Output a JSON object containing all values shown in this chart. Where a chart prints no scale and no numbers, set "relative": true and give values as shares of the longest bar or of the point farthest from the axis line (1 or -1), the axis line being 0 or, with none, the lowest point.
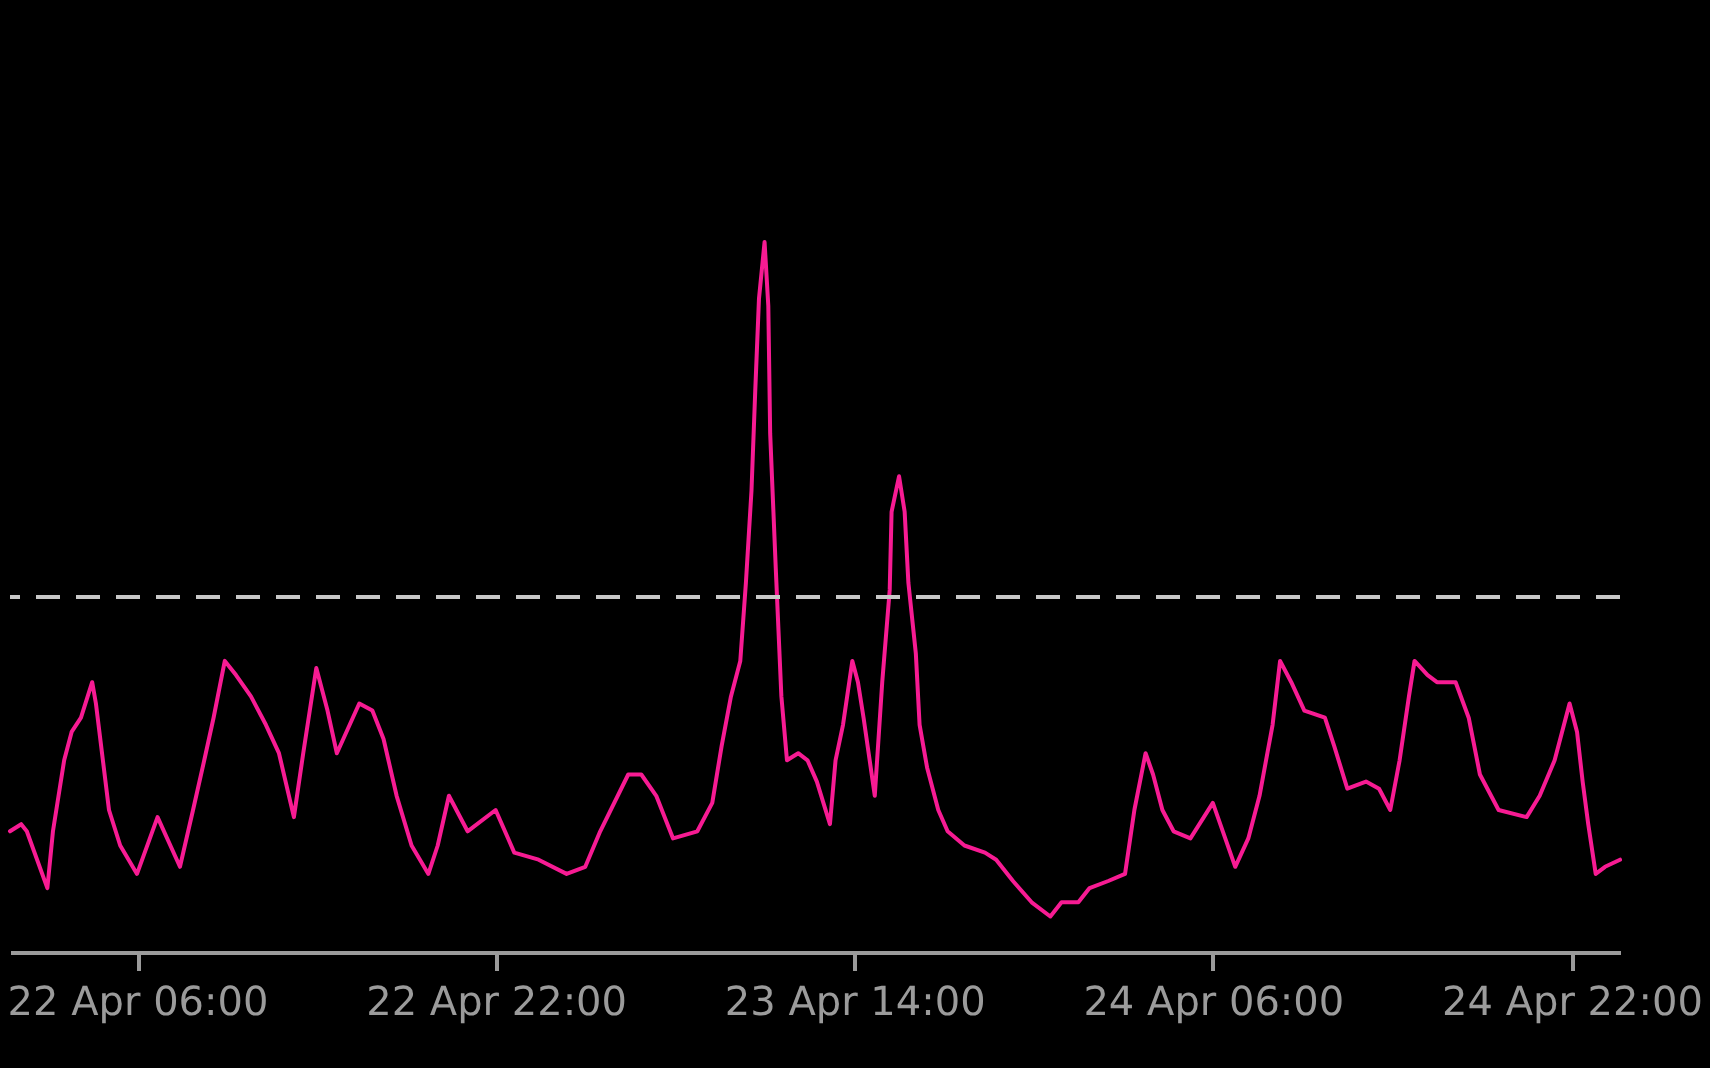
{
  "chart_data": {
    "type": "line",
    "relative": true,
    "x": [
      "--04-22T00:20",
      "--04-22T00:50",
      "--04-22T01:05",
      "--04-22T02:00",
      "--04-22T02:15",
      "--04-22T02:45",
      "--04-22T03:05",
      "--04-22T03:30",
      "--04-22T04:00",
      "--04-22T04:10",
      "--04-22T04:45",
      "--04-22T05:15",
      "--04-22T06:00",
      "--04-22T06:55",
      "--04-22T07:55",
      "--04-22T08:30",
      "--04-22T09:00",
      "--04-22T09:25",
      "--04-22T09:55",
      "--04-22T10:25",
      "--04-22T11:05",
      "--04-22T11:45",
      "--04-22T12:20",
      "--04-22T13:00",
      "--04-22T13:25",
      "--04-22T14:00",
      "--04-22T14:30",
      "--04-22T14:55",
      "--04-22T15:55",
      "--04-22T16:30",
      "--04-22T17:00",
      "--04-22T17:35",
      "--04-22T18:15",
      "--04-22T19:00",
      "--04-22T19:25",
      "--04-22T19:55",
      "--04-22T20:45",
      "--04-22T22:00",
      "--04-22T22:50",
      "--04-22T23:55",
      "--04-23T01:10",
      "--04-23T02:00",
      "--04-23T02:40",
      "--04-23T03:55",
      "--04-23T04:30",
      "--04-23T05:10",
      "--04-23T05:55",
      "--04-23T07:00",
      "--04-23T07:40",
      "--04-23T08:05",
      "--04-23T08:30",
      "--04-23T08:55",
      "--04-23T09:10",
      "--04-23T09:25",
      "--04-23T09:35",
      "--04-23T09:45",
      "--04-23T10:00",
      "--04-23T10:10",
      "--04-23T10:15",
      "--04-23T10:30",
      "--04-23T10:45",
      "--04-23T11:00",
      "--04-23T11:30",
      "--04-23T11:55",
      "--04-23T12:20",
      "--04-23T12:55",
      "--04-23T13:10",
      "--04-23T13:30",
      "--04-23T13:55",
      "--04-23T14:10",
      "--04-23T14:25",
      "--04-23T14:55",
      "--04-23T15:15",
      "--04-23T15:35",
      "--04-23T15:40",
      "--04-23T16:00",
      "--04-23T16:15",
      "--04-23T16:25",
      "--04-23T16:45",
      "--04-23T16:55",
      "--04-23T17:15",
      "--04-23T17:45",
      "--04-23T18:10",
      "--04-23T18:55",
      "--04-23T19:50",
      "--04-23T20:20",
      "--04-23T21:05",
      "--04-23T21:55",
      "--04-23T22:45",
      "--04-23T23:15",
      "--04-24T00:00",
      "--04-24T00:30",
      "--04-24T01:20",
      "--04-24T02:05",
      "--04-24T02:30",
      "--04-24T03:00",
      "--04-24T03:20",
      "--04-24T03:45",
      "--04-24T04:15",
      "--04-24T05:00",
      "--04-24T06:00",
      "--04-24T07:00",
      "--04-24T07:35",
      "--04-24T08:05",
      "--04-24T08:40",
      "--04-24T09:00",
      "--04-24T09:30",
      "--04-24T10:05",
      "--04-24T11:00",
      "--04-24T11:25",
      "--04-24T12:00",
      "--04-24T12:50",
      "--04-24T13:25",
      "--04-24T13:55",
      "--04-24T14:20",
      "--04-24T14:45",
      "--04-24T15:00",
      "--04-24T15:35",
      "--04-24T16:00",
      "--04-24T16:50",
      "--04-24T17:25",
      "--04-24T17:55",
      "--04-24T18:45",
      "--04-24T20:00",
      "--04-24T20:35",
      "--04-24T21:15",
      "--04-24T21:55",
      "--04-24T22:15",
      "--04-24T22:30",
      "--04-24T22:45",
      "--04-24T23:05",
      "--04-24T23:30",
      "--04-25T00:10"
    ],
    "series": [
      {
        "color": "#f71b93",
        "values": [
          0.17,
          0.18,
          0.17,
          0.09,
          0.17,
          0.27,
          0.31,
          0.33,
          0.38,
          0.35,
          0.2,
          0.15,
          0.11,
          0.19,
          0.12,
          0.2,
          0.27,
          0.33,
          0.41,
          0.39,
          0.36,
          0.32,
          0.28,
          0.19,
          0.28,
          0.4,
          0.34,
          0.28,
          0.35,
          0.34,
          0.3,
          0.22,
          0.15,
          0.11,
          0.15,
          0.22,
          0.17,
          0.2,
          0.14,
          0.13,
          0.11,
          0.12,
          0.17,
          0.25,
          0.25,
          0.22,
          0.16,
          0.17,
          0.21,
          0.29,
          0.36,
          0.41,
          0.52,
          0.65,
          0.79,
          0.92,
          1,
          0.91,
          0.73,
          0.54,
          0.36,
          0.27,
          0.28,
          0.27,
          0.24,
          0.18,
          0.27,
          0.32,
          0.41,
          0.38,
          0.33,
          0.22,
          0.38,
          0.51,
          0.62,
          0.67,
          0.62,
          0.52,
          0.42,
          0.32,
          0.26,
          0.2,
          0.17,
          0.15,
          0.14,
          0.13,
          0.1,
          0.07,
          0.05,
          0.07,
          0.07,
          0.09,
          0.1,
          0.11,
          0.2,
          0.28,
          0.25,
          0.2,
          0.17,
          0.16,
          0.21,
          0.12,
          0.16,
          0.22,
          0.32,
          0.41,
          0.38,
          0.34,
          0.33,
          0.29,
          0.23,
          0.24,
          0.23,
          0.2,
          0.27,
          0.36,
          0.41,
          0.39,
          0.38,
          0.38,
          0.33,
          0.25,
          0.2,
          0.19,
          0.22,
          0.27,
          0.35,
          0.31,
          0.24,
          0.18,
          0.11,
          0.12,
          0.13
        ]
      }
    ],
    "xlim": [
      "--04-22T00:20",
      "--04-25T00:10"
    ],
    "xticks": [
      {
        "value": "--04-22T06:00",
        "label": "22 Apr 06:00"
      },
      {
        "value": "--04-22T22:00",
        "label": "22 Apr 22:00"
      },
      {
        "value": "--04-23T14:00",
        "label": "23 Apr 14:00"
      },
      {
        "value": "--04-24T06:00",
        "label": "24 Apr 06:00"
      },
      {
        "value": "--04-24T22:00",
        "label": "24 Apr 22:00"
      }
    ],
    "ref_lines": [
      {
        "axis": "y",
        "value": 0.5,
        "color": "#c8c8c8",
        "line_style": "dashed"
      }
    ]
  }
}
